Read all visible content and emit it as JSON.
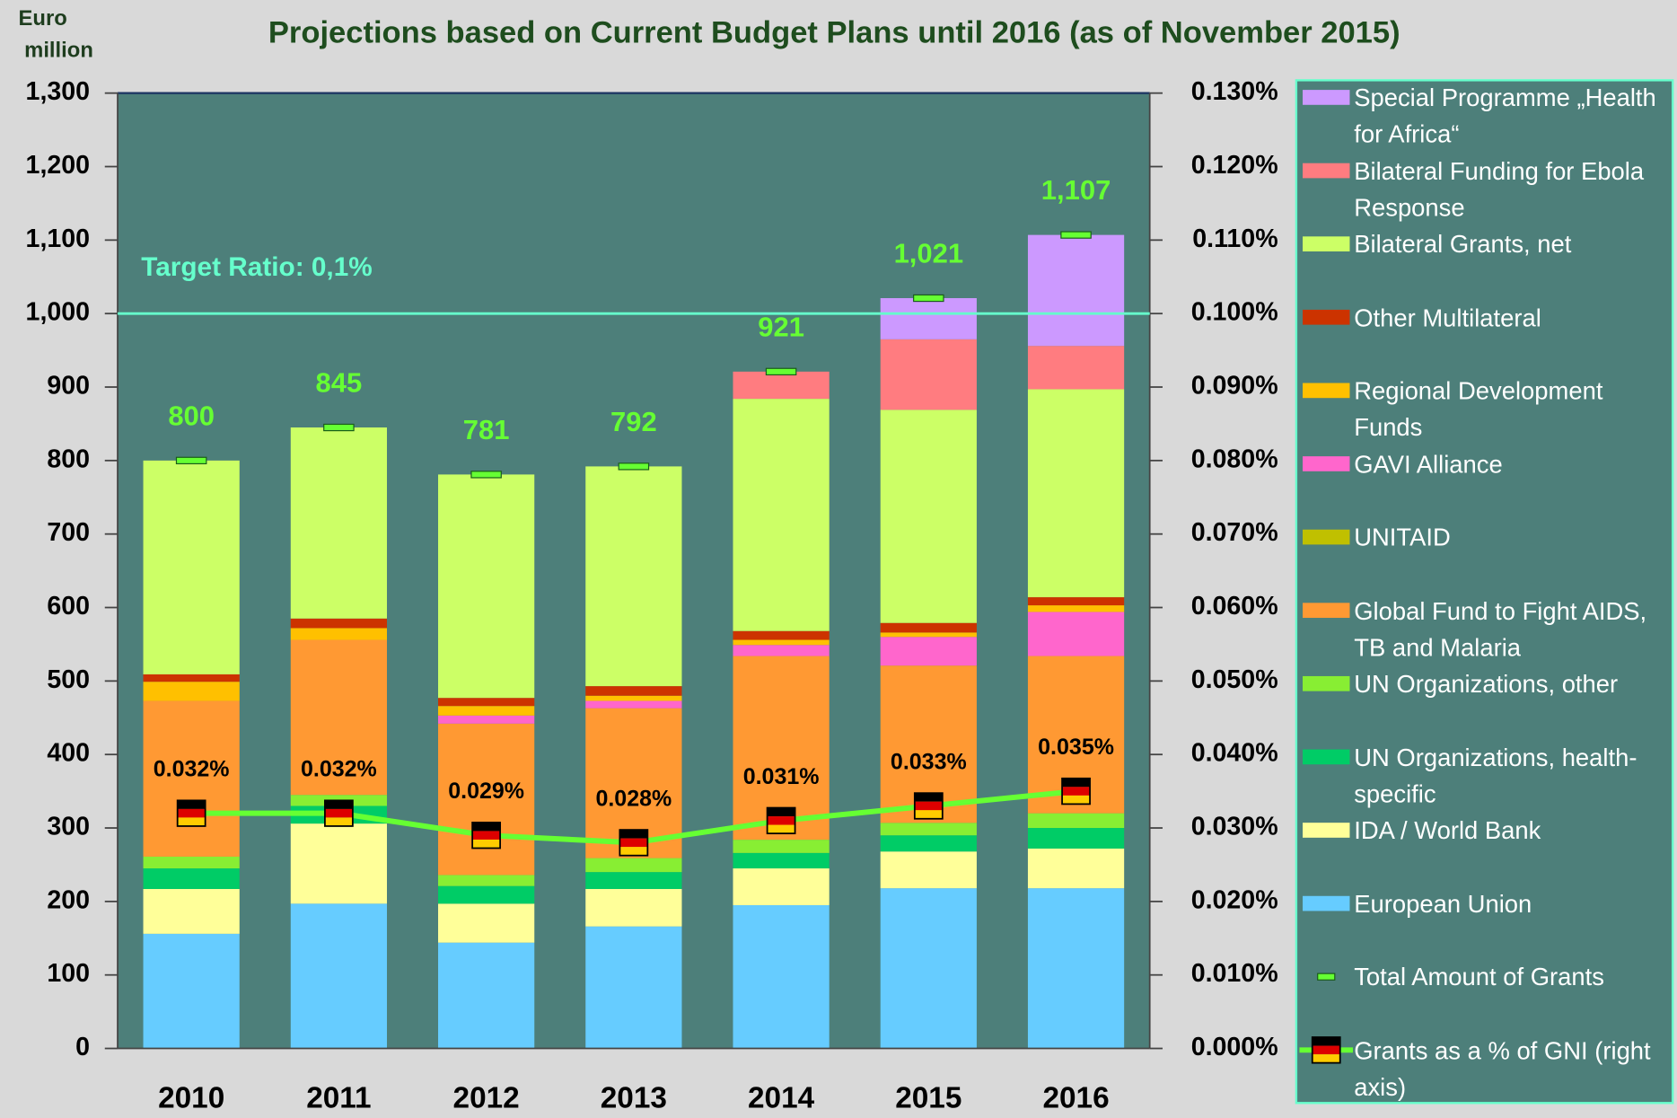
{
  "chart_data": {
    "type": "bar",
    "title": "Projections based on Current Budget Plans until 2016 (as of November 2015)",
    "ylabel_lines": [
      "Euro",
      "million"
    ],
    "categories": [
      "2010",
      "2011",
      "2012",
      "2013",
      "2014",
      "2015",
      "2016"
    ],
    "stacked": true,
    "series": [
      {
        "name": "European Union",
        "color": "#66ccff",
        "values": [
          156,
          197,
          144,
          166,
          195,
          218,
          218
        ]
      },
      {
        "name": "IDA / World Bank",
        "color": "#ffff99",
        "values": [
          61,
          109,
          53,
          51,
          50,
          50,
          54
        ]
      },
      {
        "name": "UN Organizations, health-specific",
        "color": "#00cc66",
        "values": [
          28,
          24,
          24,
          23,
          21,
          22,
          28
        ]
      },
      {
        "name": "UN Organizations, other",
        "color": "#88ee33",
        "values": [
          16,
          15,
          15,
          19,
          18,
          17,
          20
        ]
      },
      {
        "name": "Global Fund to Fight AIDS, TB and Malaria",
        "color": "#ff9933",
        "values": [
          212,
          211,
          206,
          204,
          250,
          214,
          214
        ]
      },
      {
        "name": "UNITAID",
        "color": "#c0c000",
        "values": [
          0,
          0,
          0,
          0,
          0,
          0,
          0
        ]
      },
      {
        "name": "GAVI Alliance",
        "color": "#ff66cc",
        "values": [
          0,
          0,
          11,
          10,
          15,
          39,
          60
        ]
      },
      {
        "name": "Regional Development Funds",
        "color": "#ffc000",
        "values": [
          26,
          16,
          13,
          7,
          7,
          6,
          9
        ]
      },
      {
        "name": "Other Multilateral",
        "color": "#cc3300",
        "values": [
          10,
          13,
          11,
          13,
          12,
          13,
          11
        ]
      },
      {
        "name": "Bilateral Grants, net",
        "color": "#ccff66",
        "values": [
          291,
          260,
          304,
          299,
          316,
          290,
          283
        ]
      },
      {
        "name": "Bilateral Funding for Ebola Response",
        "color": "#ff7c80",
        "values": [
          0,
          0,
          0,
          0,
          37,
          96,
          59
        ]
      },
      {
        "name": "Special Programme „Health for Africa“",
        "color": "#cc99ff",
        "values": [
          0,
          0,
          0,
          0,
          0,
          56,
          151
        ]
      }
    ],
    "totals": {
      "name": "Total Amount of Grants",
      "color": "#66ff33",
      "values": [
        800,
        845,
        781,
        792,
        921,
        1021,
        1107
      ],
      "value_labels": [
        "800",
        "845",
        "781",
        "792",
        "921",
        "1,021",
        "1,107"
      ]
    },
    "gni": {
      "name": "Grants as a % of GNI (right axis)",
      "color": "#66ff33",
      "axis": "y2",
      "values": [
        0.032,
        0.032,
        0.029,
        0.028,
        0.031,
        0.033,
        0.035
      ],
      "value_labels": [
        "0.032%",
        "0.032%",
        "0.029%",
        "0.028%",
        "0.031%",
        "0.033%",
        "0.035%"
      ]
    },
    "target": {
      "label": "Target Ratio: 0,1%",
      "value": 0.1,
      "axis": "y2",
      "color": "#66ffcc"
    },
    "ylim": [
      0,
      1300
    ],
    "yticks": [
      0,
      100,
      200,
      300,
      400,
      500,
      600,
      700,
      800,
      900,
      {
        "value": 1000,
        "label": "1,000"
      },
      {
        "value": 1100,
        "label": "1,100"
      },
      {
        "value": 1200,
        "label": "1,200"
      },
      {
        "value": 1300,
        "label": "1,300"
      }
    ],
    "y2lim": [
      0,
      0.13
    ],
    "y2ticks": [
      {
        "value": 0,
        "label": "0.000%"
      },
      {
        "value": 0.01,
        "label": "0.010%"
      },
      {
        "value": 0.02,
        "label": "0.020%"
      },
      {
        "value": 0.03,
        "label": "0.030%"
      },
      {
        "value": 0.04,
        "label": "0.040%"
      },
      {
        "value": 0.05,
        "label": "0.050%"
      },
      {
        "value": 0.06,
        "label": "0.060%"
      },
      {
        "value": 0.07,
        "label": "0.070%"
      },
      {
        "value": 0.08,
        "label": "0.080%"
      },
      {
        "value": 0.09,
        "label": "0.090%"
      },
      {
        "value": 0.1,
        "label": "0.100%"
      },
      {
        "value": 0.11,
        "label": "0.110%"
      },
      {
        "value": 0.12,
        "label": "0.120%"
      },
      {
        "value": 0.13,
        "label": "0.130%"
      }
    ],
    "plot_background": "#4d7f7a",
    "legend": "right"
  }
}
